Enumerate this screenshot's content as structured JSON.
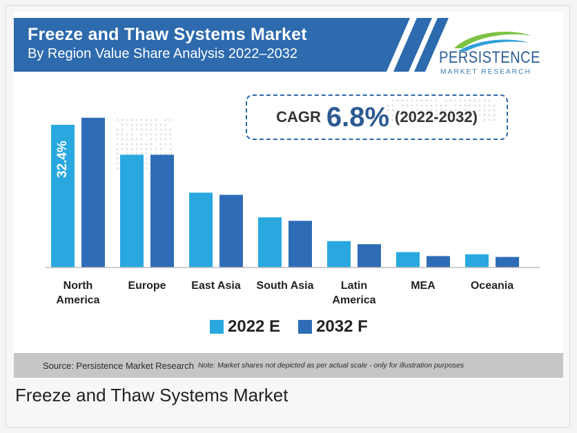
{
  "header": {
    "title": "Freeze and Thaw Systems Market",
    "subtitle": "By Region Value Share Analysis 2022–2032"
  },
  "logo": {
    "brand": "PERSISTENCE",
    "tagline": "MARKET RESEARCH",
    "icon": "swoosh-logo-icon"
  },
  "cagr": {
    "label": "CAGR",
    "value": "6.8%",
    "period": "(2022-2032)"
  },
  "colors": {
    "banner": "#2d6aae",
    "series_2022": "#29a8df",
    "series_2032": "#2f6cb7",
    "brand_text": "#2c5f96",
    "source_bar": "#c6c6c6"
  },
  "chart_data": {
    "type": "bar",
    "categories": [
      "North America",
      "Europe",
      "East Asia",
      "South Asia",
      "Latin America",
      "MEA",
      "Oceania"
    ],
    "category_lines": [
      [
        "North",
        "America"
      ],
      [
        "Europe"
      ],
      [
        "East Asia"
      ],
      [
        "South Asia"
      ],
      [
        "Latin",
        "America"
      ],
      [
        "MEA"
      ],
      [
        "Oceania"
      ]
    ],
    "series": [
      {
        "name": "2022 E",
        "values": [
          32.4,
          25.6,
          17.0,
          11.4,
          6.0,
          3.5,
          3.0
        ]
      },
      {
        "name": "2032 F",
        "values": [
          34.0,
          25.6,
          16.5,
          10.6,
          5.3,
          2.6,
          2.4
        ]
      }
    ],
    "data_labels": [
      {
        "series": 0,
        "index": 0,
        "text": "32.4%"
      }
    ],
    "ylim": [
      0,
      36
    ],
    "title": "",
    "xlabel": "",
    "ylabel": "",
    "grid": false,
    "legend_position": "bottom"
  },
  "legend": {
    "items": [
      {
        "label": "2022 E",
        "color": "#29a8df"
      },
      {
        "label": "2032 F",
        "color": "#2f6cb7"
      }
    ]
  },
  "footer": {
    "source": "Source: Persistence Market Research",
    "note": "Note: Market shares not depicted as per actual scale - only for illustration purposes"
  },
  "caption": "Freeze and Thaw Systems Market"
}
